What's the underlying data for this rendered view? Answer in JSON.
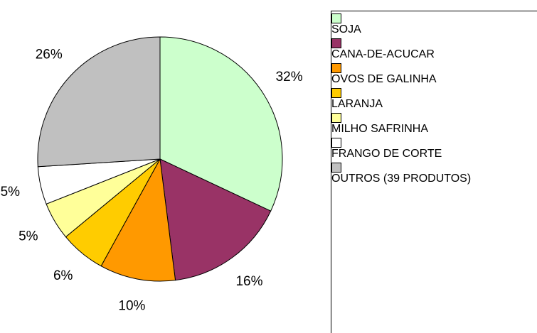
{
  "chart_data": {
    "type": "pie",
    "categories": [
      "SOJA",
      "CANA-DE-ACUCAR",
      "OVOS DE GALINHA",
      "LARANJA",
      "MILHO SAFRINHA",
      "FRANGO DE CORTE",
      "OUTROS (39 PRODUTOS)"
    ],
    "values": [
      32,
      16,
      10,
      6,
      5,
      5,
      26
    ],
    "value_labels": [
      "32%",
      "16%",
      "10%",
      "6%",
      "5%",
      "5%",
      "26%"
    ],
    "colors": [
      "#ccffcc",
      "#993366",
      "#ff9900",
      "#ffcc00",
      "#ffff99",
      "#ffffff",
      "#c0c0c0"
    ],
    "legend": "right"
  }
}
